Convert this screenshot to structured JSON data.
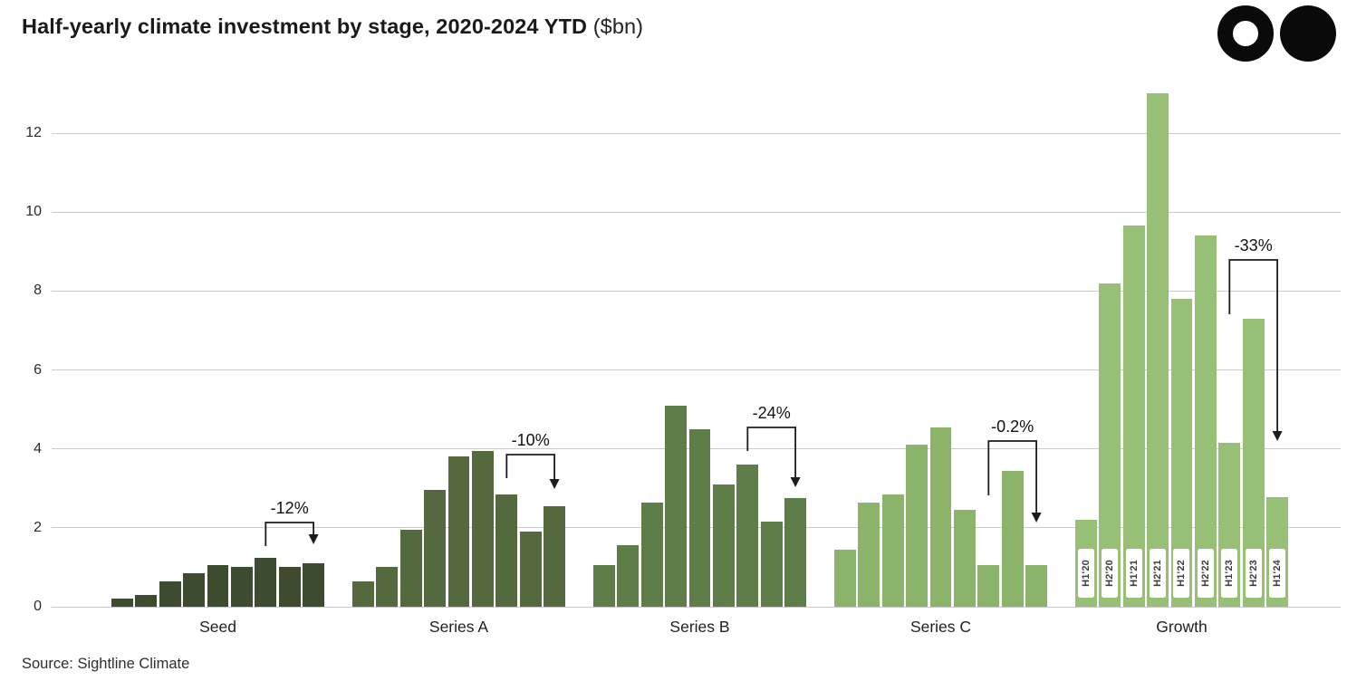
{
  "header": {
    "title_bold": "Half-yearly climate investment by stage, 2020-2024 YTD",
    "title_unit": "($bn)",
    "logo": "sightline-climate-logo"
  },
  "source": "Source: Sightline Climate",
  "chart_data": {
    "type": "bar",
    "title": "Half-yearly climate investment by stage, 2020-2024 YTD ($bn)",
    "xlabel": "",
    "ylabel": "",
    "ylim": [
      0,
      13.2
    ],
    "yticks": [
      0,
      2,
      4,
      6,
      8,
      10,
      12
    ],
    "grid": true,
    "legend": "none",
    "periods": [
      "H1'20",
      "H2'20",
      "H1'21",
      "H2'21",
      "H1'22",
      "H2'22",
      "H1'23",
      "H2'23",
      "H1'24"
    ],
    "groups": [
      {
        "name": "Seed",
        "color": "#3d4c2e",
        "values": [
          0.2,
          0.3,
          0.65,
          0.85,
          1.05,
          1.0,
          1.25,
          1.0,
          1.1
        ],
        "annotation": {
          "label": "-12%",
          "from_period": "H1'23",
          "to_period": "H1'24"
        },
        "period_labels_shown": false
      },
      {
        "name": "Series A",
        "color": "#546a3e",
        "values": [
          0.65,
          1.0,
          1.95,
          2.95,
          3.8,
          3.95,
          2.85,
          1.9,
          2.55
        ],
        "annotation": {
          "label": "-10%",
          "from_period": "H1'23",
          "to_period": "H1'24"
        },
        "period_labels_shown": false
      },
      {
        "name": "Series B",
        "color": "#5f7d48",
        "values": [
          1.05,
          1.55,
          2.65,
          5.1,
          4.5,
          3.1,
          3.6,
          2.15,
          2.75
        ],
        "annotation": {
          "label": "-24%",
          "from_period": "H1'23",
          "to_period": "H1'24"
        },
        "period_labels_shown": false
      },
      {
        "name": "Series C",
        "color": "#8bb46a",
        "values": [
          1.45,
          2.65,
          2.85,
          4.1,
          4.55,
          2.45,
          1.05,
          3.45,
          1.05
        ],
        "annotation": {
          "label": "-0.2%",
          "from_period": "H1'23",
          "to_period": "H1'24"
        },
        "period_labels_shown": false
      },
      {
        "name": "Growth",
        "color": "#97bf75",
        "values": [
          2.2,
          8.2,
          9.65,
          13.0,
          7.8,
          9.4,
          4.15,
          7.3,
          2.78
        ],
        "annotation": {
          "label": "-33%",
          "from_period": "H1'23",
          "to_period": "H1'24"
        },
        "period_labels_shown": true
      }
    ]
  }
}
